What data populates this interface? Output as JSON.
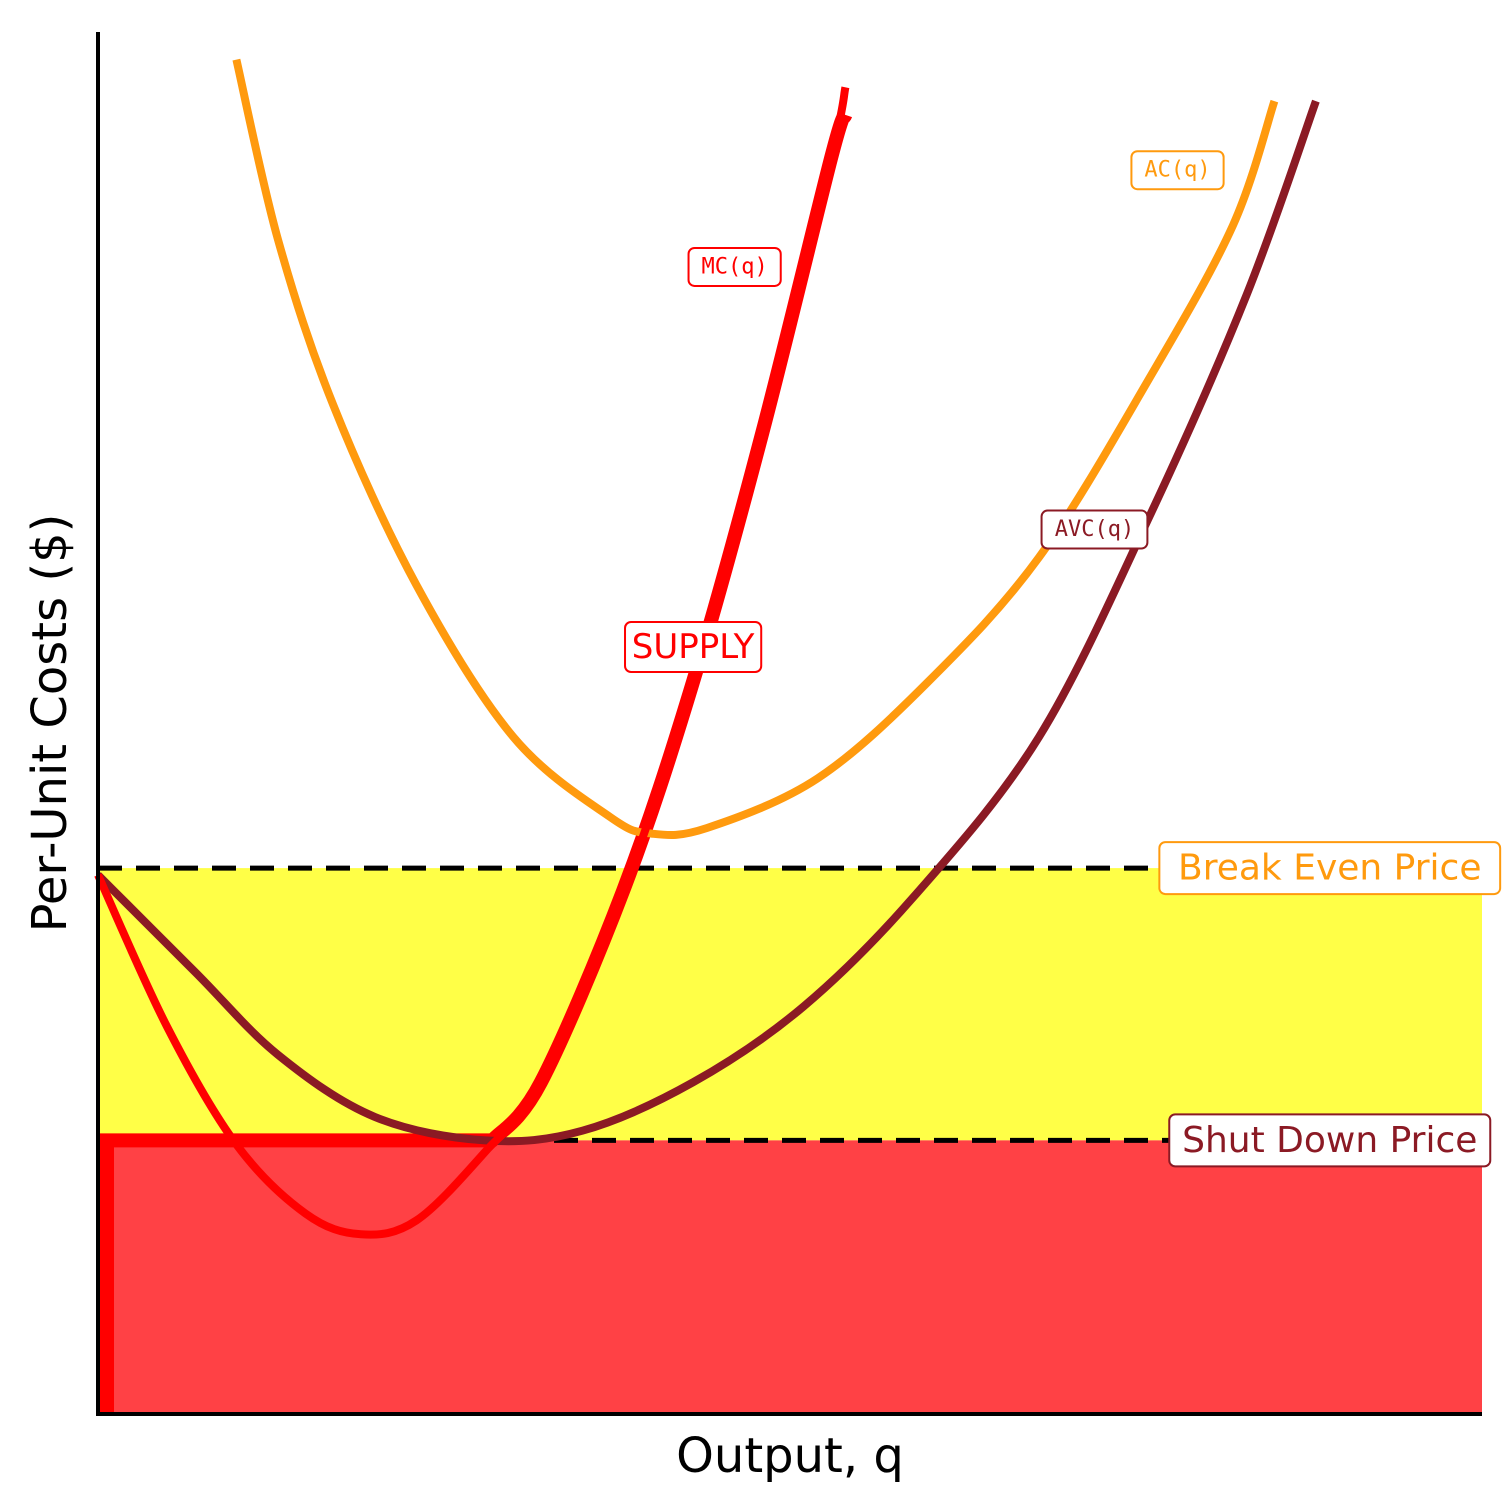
{
  "chart_data": {
    "type": "line",
    "xlabel": "Output, q",
    "ylabel": "Per-Unit Costs ($)",
    "xlim": [
      0,
      10
    ],
    "ylim": [
      0,
      10
    ],
    "grid": false,
    "series": [
      {
        "name": "MC(q)",
        "color": "#ff0000",
        "points": [
          [
            0,
            3.9
          ],
          [
            0.5,
            2.8
          ],
          [
            1.0,
            1.95
          ],
          [
            1.5,
            1.45
          ],
          [
            1.9,
            1.3
          ],
          [
            2.3,
            1.4
          ],
          [
            2.8,
            1.9
          ],
          [
            3.2,
            2.4
          ],
          [
            3.8,
            3.8
          ],
          [
            4.3,
            5.3
          ],
          [
            4.8,
            7.1
          ],
          [
            5.3,
            9.1
          ],
          [
            5.4,
            9.6
          ]
        ]
      },
      {
        "name": "AVC(q)",
        "color": "#8b1a24",
        "points": [
          [
            0,
            3.9
          ],
          [
            0.7,
            3.2
          ],
          [
            1.3,
            2.6
          ],
          [
            2.0,
            2.15
          ],
          [
            2.8,
            1.98
          ],
          [
            3.5,
            2.05
          ],
          [
            4.3,
            2.4
          ],
          [
            5.1,
            2.95
          ],
          [
            5.9,
            3.75
          ],
          [
            6.8,
            4.9
          ],
          [
            7.6,
            6.5
          ],
          [
            8.3,
            8.1
          ],
          [
            8.8,
            9.5
          ]
        ]
      },
      {
        "name": "AC(q)",
        "color": "#ff9a0e",
        "points": [
          [
            1.0,
            9.8
          ],
          [
            1.3,
            8.5
          ],
          [
            1.7,
            7.3
          ],
          [
            2.3,
            6.0
          ],
          [
            3.0,
            4.9
          ],
          [
            3.7,
            4.32
          ],
          [
            4.0,
            4.2
          ],
          [
            4.4,
            4.24
          ],
          [
            5.2,
            4.6
          ],
          [
            6.0,
            5.3
          ],
          [
            6.8,
            6.2
          ],
          [
            7.6,
            7.5
          ],
          [
            8.2,
            8.6
          ],
          [
            8.5,
            9.5
          ]
        ]
      },
      {
        "name": "SUPPLY",
        "color": "#ff0000",
        "points": [
          [
            0,
            1.98
          ],
          [
            2.85,
            1.98
          ],
          [
            3.2,
            2.4
          ],
          [
            3.8,
            3.8
          ],
          [
            4.3,
            5.3
          ],
          [
            4.8,
            7.1
          ],
          [
            5.3,
            9.1
          ],
          [
            5.4,
            9.4
          ]
        ]
      }
    ],
    "hlines": [
      {
        "name": "Break Even Price",
        "y": 3.95,
        "color": "#ff9a0e",
        "style": "dashed"
      },
      {
        "name": "Shut Down Price",
        "y": 1.98,
        "color": "#8b1a24",
        "style": "dashed"
      }
    ],
    "regions": [
      {
        "name": "yellow-band",
        "from": 1.98,
        "to": 3.95,
        "color": "#ffff47"
      },
      {
        "name": "red-band",
        "from": 0,
        "to": 1.98,
        "color": "#ff4145"
      }
    ],
    "annotations": [
      {
        "key": "mc",
        "text": "MC(q)",
        "x": 4.6,
        "y": 8.3,
        "color": "#ff0000"
      },
      {
        "key": "ac",
        "text": "AC(q)",
        "x": 7.8,
        "y": 9.0,
        "color": "#ff9a0e"
      },
      {
        "key": "avc",
        "text": "AVC(q)",
        "x": 7.2,
        "y": 6.4,
        "color": "#8b1a24"
      },
      {
        "key": "supply",
        "text": "SUPPLY",
        "x": 4.3,
        "y": 5.55,
        "color": "#ff0000"
      },
      {
        "key": "breakeven",
        "text": "Break Even Price",
        "x": 8.9,
        "y": 3.95,
        "color": "#ff9a0e"
      },
      {
        "key": "shutdown",
        "text": "Shut Down Price",
        "x": 8.9,
        "y": 1.98,
        "color": "#8b1a24"
      }
    ]
  }
}
